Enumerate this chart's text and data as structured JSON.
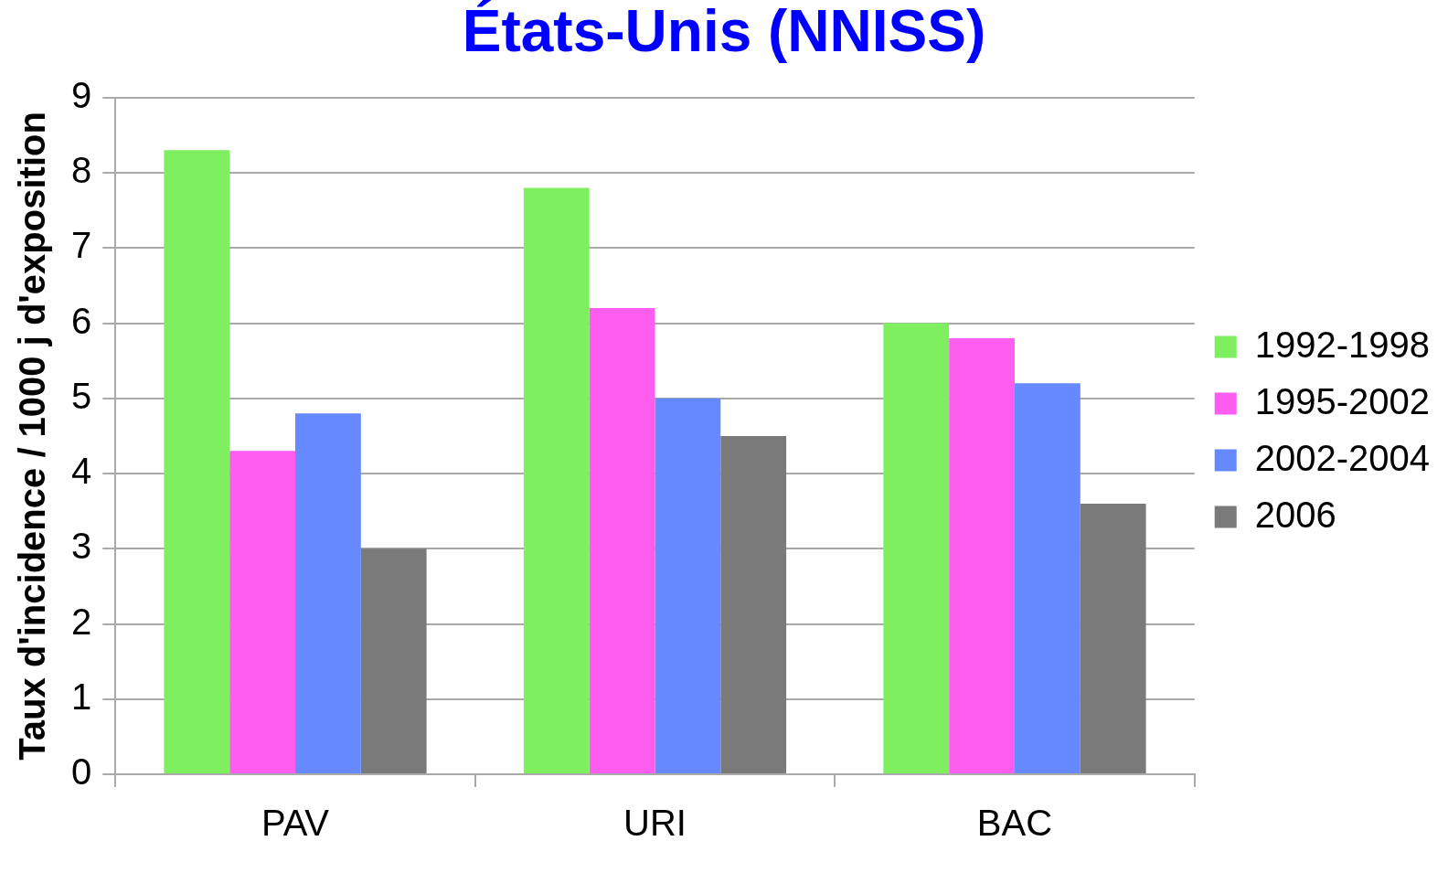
{
  "chart_data": {
    "type": "bar",
    "title": "États-Unis (NNISS)",
    "ylabel": "Taux d'incidence / 1000 j d'exposition",
    "categories": [
      "PAV",
      "URI",
      "BAC"
    ],
    "series": [
      {
        "name": "1992-1998",
        "color": "#7ef060",
        "values": [
          8.3,
          7.8,
          6.0
        ]
      },
      {
        "name": "1995-2002",
        "color": "#ff5cf0",
        "values": [
          4.3,
          6.2,
          5.8
        ]
      },
      {
        "name": "2002-2004",
        "color": "#6689ff",
        "values": [
          4.8,
          5.0,
          5.2
        ]
      },
      {
        "name": "2006",
        "color": "#7a7a7a",
        "values": [
          3.0,
          4.5,
          3.6
        ]
      }
    ],
    "ylim": [
      0,
      9
    ],
    "yticks": [
      0,
      1,
      2,
      3,
      4,
      5,
      6,
      7,
      8,
      9
    ],
    "grid": "y",
    "legend": "right"
  }
}
